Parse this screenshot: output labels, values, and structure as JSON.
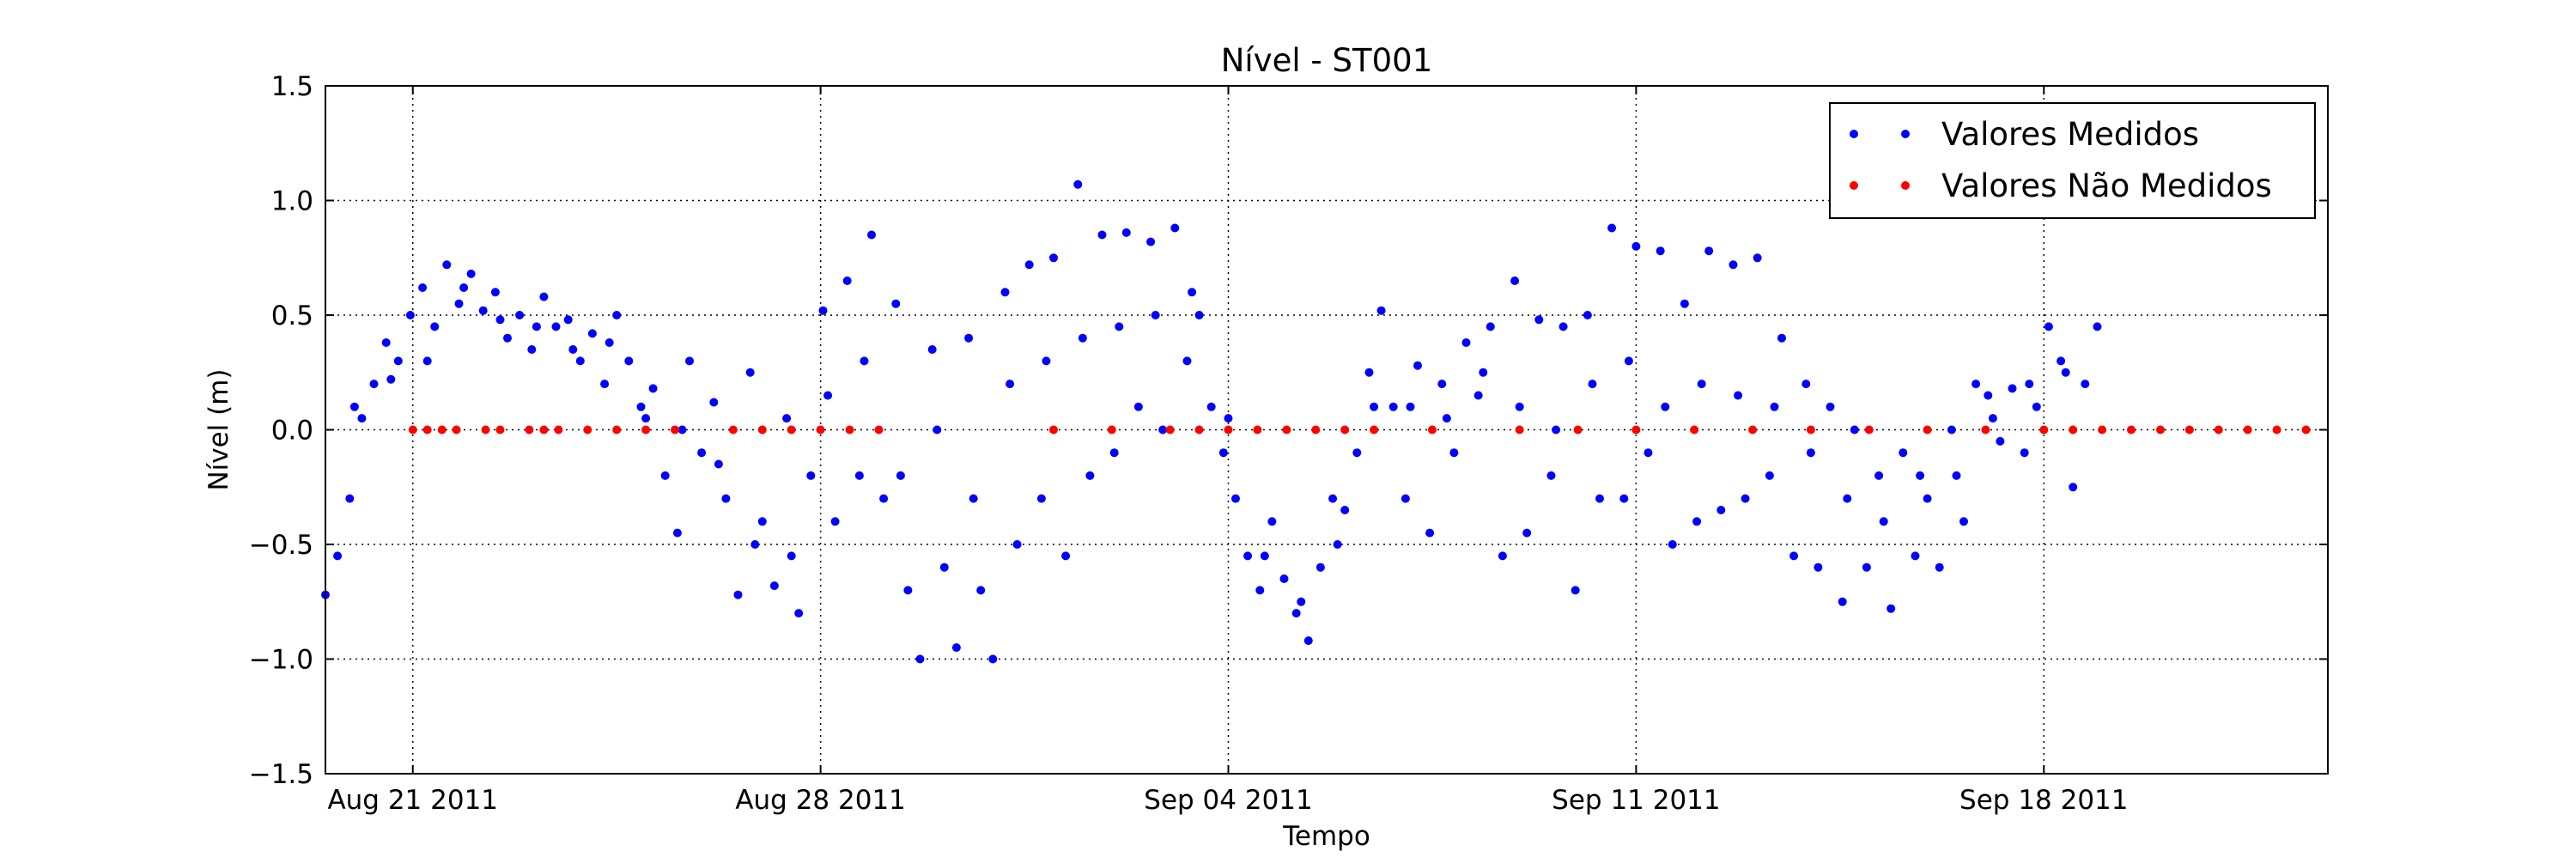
{
  "chart_data": {
    "type": "scatter",
    "title": "Nível - ST001",
    "xlabel": "Tempo",
    "ylabel": "Nível (m)",
    "x_is_date": true,
    "xlim": [
      "2011-08-19T12:00",
      "2011-09-22T21:00"
    ],
    "ylim": [
      -1.5,
      1.5
    ],
    "x_ticks": [
      {
        "value": "2011-08-21",
        "label": "Aug 21 2011"
      },
      {
        "value": "2011-08-28",
        "label": "Aug 28 2011"
      },
      {
        "value": "2011-09-04",
        "label": "Sep 04 2011"
      },
      {
        "value": "2011-09-11",
        "label": "Sep 11 2011"
      },
      {
        "value": "2011-09-18",
        "label": "Sep 18 2011"
      }
    ],
    "y_ticks": [
      {
        "value": 1.5,
        "label": "1.5"
      },
      {
        "value": 1.0,
        "label": "1.0"
      },
      {
        "value": 0.5,
        "label": "0.5"
      },
      {
        "value": 0.0,
        "label": "0.0"
      },
      {
        "value": -0.5,
        "label": "−0.5"
      },
      {
        "value": -1.0,
        "label": "−1.0"
      },
      {
        "value": -1.5,
        "label": "−1.5"
      }
    ],
    "grid": true,
    "legend_position": "top-right",
    "series": [
      {
        "name": "Valores Medidos",
        "color": "#0000ff",
        "points": [
          [
            "2011-08-19T12:00",
            -0.72
          ],
          [
            "2011-08-19T17:00",
            -0.55
          ],
          [
            "2011-08-19T22:00",
            -0.3
          ],
          [
            "2011-08-20T03:00",
            0.05
          ],
          [
            "2011-08-20T08:00",
            0.2
          ],
          [
            "2011-08-20T13:00",
            0.38
          ],
          [
            "2011-08-20T18:00",
            0.3
          ],
          [
            "2011-08-20T23:00",
            0.5
          ],
          [
            "2011-08-21T04:00",
            0.62
          ],
          [
            "2011-08-21T09:00",
            0.45
          ],
          [
            "2011-08-21T14:00",
            0.72
          ],
          [
            "2011-08-21T19:00",
            0.55
          ],
          [
            "2011-08-22T00:00",
            0.68
          ],
          [
            "2011-08-22T05:00",
            0.52
          ],
          [
            "2011-08-22T10:00",
            0.6
          ],
          [
            "2011-08-22T15:00",
            0.4
          ],
          [
            "2011-08-22T20:00",
            0.5
          ],
          [
            "2011-08-23T01:00",
            0.35
          ],
          [
            "2011-08-23T06:00",
            0.58
          ],
          [
            "2011-08-23T11:00",
            0.45
          ],
          [
            "2011-08-23T16:00",
            0.48
          ],
          [
            "2011-08-23T21:00",
            0.3
          ],
          [
            "2011-08-24T02:00",
            0.42
          ],
          [
            "2011-08-24T07:00",
            0.2
          ],
          [
            "2011-08-24T12:00",
            0.5
          ],
          [
            "2011-08-24T17:00",
            0.3
          ],
          [
            "2011-08-24T22:00",
            0.1
          ],
          [
            "2011-08-25T03:00",
            0.18
          ],
          [
            "2011-08-25T08:00",
            -0.2
          ],
          [
            "2011-08-25T13:00",
            -0.45
          ],
          [
            "2011-08-25T18:00",
            0.3
          ],
          [
            "2011-08-25T23:00",
            -0.1
          ],
          [
            "2011-08-26T04:00",
            0.12
          ],
          [
            "2011-08-26T09:00",
            -0.3
          ],
          [
            "2011-08-26T14:00",
            -0.72
          ],
          [
            "2011-08-26T19:00",
            0.25
          ],
          [
            "2011-08-27T00:00",
            -0.4
          ],
          [
            "2011-08-27T05:00",
            -0.68
          ],
          [
            "2011-08-27T10:00",
            0.05
          ],
          [
            "2011-08-27T15:00",
            -0.8
          ],
          [
            "2011-08-27T20:00",
            -0.2
          ],
          [
            "2011-08-28T01:00",
            0.52
          ],
          [
            "2011-08-28T06:00",
            -0.4
          ],
          [
            "2011-08-28T11:00",
            0.65
          ],
          [
            "2011-08-28T16:00",
            -0.2
          ],
          [
            "2011-08-28T21:00",
            0.85
          ],
          [
            "2011-08-29T02:00",
            -0.3
          ],
          [
            "2011-08-29T07:00",
            0.55
          ],
          [
            "2011-08-29T12:00",
            -0.7
          ],
          [
            "2011-08-29T17:00",
            -1.0
          ],
          [
            "2011-08-29T22:00",
            0.35
          ],
          [
            "2011-08-30T03:00",
            -0.6
          ],
          [
            "2011-08-30T08:00",
            -0.95
          ],
          [
            "2011-08-30T13:00",
            0.4
          ],
          [
            "2011-08-30T18:00",
            -0.7
          ],
          [
            "2011-08-30T23:00",
            -1.0
          ],
          [
            "2011-08-31T04:00",
            0.6
          ],
          [
            "2011-08-31T09:00",
            -0.5
          ],
          [
            "2011-08-31T14:00",
            0.72
          ],
          [
            "2011-08-31T19:00",
            -0.3
          ],
          [
            "2011-09-01T00:00",
            0.75
          ],
          [
            "2011-09-01T05:00",
            -0.55
          ],
          [
            "2011-09-01T10:00",
            1.07
          ],
          [
            "2011-09-01T15:00",
            -0.2
          ],
          [
            "2011-09-01T20:00",
            0.85
          ],
          [
            "2011-09-02T01:00",
            -0.1
          ],
          [
            "2011-09-02T06:00",
            0.86
          ],
          [
            "2011-09-02T11:00",
            0.1
          ],
          [
            "2011-09-02T16:00",
            0.82
          ],
          [
            "2011-09-02T21:00",
            0.0
          ],
          [
            "2011-09-03T02:00",
            0.88
          ],
          [
            "2011-09-03T07:00",
            0.3
          ],
          [
            "2011-09-03T12:00",
            0.5
          ],
          [
            "2011-09-03T17:00",
            0.1
          ],
          [
            "2011-09-03T22:00",
            -0.1
          ],
          [
            "2011-09-04T03:00",
            -0.3
          ],
          [
            "2011-09-04T08:00",
            -0.55
          ],
          [
            "2011-09-04T13:00",
            -0.7
          ],
          [
            "2011-09-04T18:00",
            -0.4
          ],
          [
            "2011-09-04T23:00",
            -0.65
          ],
          [
            "2011-09-05T04:00",
            -0.8
          ],
          [
            "2011-09-05T09:00",
            -0.92
          ],
          [
            "2011-09-05T14:00",
            -0.6
          ],
          [
            "2011-09-05T19:00",
            -0.3
          ],
          [
            "2011-09-06T00:00",
            -0.35
          ],
          [
            "2011-09-06T05:00",
            -0.1
          ],
          [
            "2011-09-06T10:00",
            0.25
          ],
          [
            "2011-09-06T15:00",
            0.52
          ],
          [
            "2011-09-06T20:00",
            0.1
          ],
          [
            "2011-09-07T01:00",
            -0.3
          ],
          [
            "2011-09-07T06:00",
            0.28
          ],
          [
            "2011-09-07T11:00",
            -0.45
          ],
          [
            "2011-09-07T16:00",
            0.2
          ],
          [
            "2011-09-07T21:00",
            -0.1
          ],
          [
            "2011-09-08T02:00",
            0.38
          ],
          [
            "2011-09-08T07:00",
            0.15
          ],
          [
            "2011-09-08T12:00",
            0.45
          ],
          [
            "2011-09-08T17:00",
            -0.55
          ],
          [
            "2011-09-08T22:00",
            0.65
          ],
          [
            "2011-09-09T03:00",
            -0.45
          ],
          [
            "2011-09-09T08:00",
            0.48
          ],
          [
            "2011-09-09T13:00",
            -0.2
          ],
          [
            "2011-09-09T18:00",
            0.45
          ],
          [
            "2011-09-09T23:00",
            -0.7
          ],
          [
            "2011-09-10T04:00",
            0.5
          ],
          [
            "2011-09-10T09:00",
            -0.3
          ],
          [
            "2011-09-10T14:00",
            0.88
          ],
          [
            "2011-09-10T19:00",
            -0.3
          ],
          [
            "2011-09-11T00:00",
            0.8
          ],
          [
            "2011-09-11T05:00",
            -0.1
          ],
          [
            "2011-09-11T10:00",
            0.78
          ],
          [
            "2011-09-11T15:00",
            -0.5
          ],
          [
            "2011-09-11T20:00",
            0.55
          ],
          [
            "2011-09-12T01:00",
            -0.4
          ],
          [
            "2011-09-12T06:00",
            0.78
          ],
          [
            "2011-09-12T11:00",
            -0.35
          ],
          [
            "2011-09-12T16:00",
            0.72
          ],
          [
            "2011-09-12T21:00",
            -0.3
          ],
          [
            "2011-09-13T02:00",
            0.75
          ],
          [
            "2011-09-13T07:00",
            -0.2
          ],
          [
            "2011-09-13T12:00",
            0.4
          ],
          [
            "2011-09-13T17:00",
            -0.55
          ],
          [
            "2011-09-13T22:00",
            0.2
          ],
          [
            "2011-09-14T03:00",
            -0.6
          ],
          [
            "2011-09-14T08:00",
            0.1
          ],
          [
            "2011-09-14T13:00",
            -0.75
          ],
          [
            "2011-09-14T18:00",
            0.0
          ],
          [
            "2011-09-14T23:00",
            -0.6
          ],
          [
            "2011-09-15T04:00",
            -0.2
          ],
          [
            "2011-09-15T09:00",
            -0.78
          ],
          [
            "2011-09-15T14:00",
            -0.1
          ],
          [
            "2011-09-15T19:00",
            -0.55
          ],
          [
            "2011-09-16T00:00",
            -0.3
          ],
          [
            "2011-09-16T05:00",
            -0.6
          ],
          [
            "2011-09-16T10:00",
            0.0
          ],
          [
            "2011-09-16T15:00",
            -0.4
          ],
          [
            "2011-09-16T20:00",
            0.2
          ],
          [
            "2011-09-17T01:00",
            0.15
          ],
          [
            "2011-09-17T06:00",
            -0.05
          ],
          [
            "2011-09-17T11:00",
            0.18
          ],
          [
            "2011-09-17T16:00",
            -0.1
          ],
          [
            "2011-09-17T21:00",
            0.1
          ],
          [
            "2011-09-18T02:00",
            0.45
          ],
          [
            "2011-09-18T07:00",
            0.3
          ],
          [
            "2011-09-18T12:00",
            -0.25
          ],
          [
            "2011-09-18T17:00",
            0.2
          ],
          [
            "2011-09-18T22:00",
            0.45
          ],
          [
            "2011-08-20T00:00",
            0.1
          ],
          [
            "2011-08-20T15:00",
            0.22
          ],
          [
            "2011-08-21T06:00",
            0.3
          ],
          [
            "2011-08-21T21:00",
            0.62
          ],
          [
            "2011-08-22T12:00",
            0.48
          ],
          [
            "2011-08-23T03:00",
            0.45
          ],
          [
            "2011-08-23T18:00",
            0.35
          ],
          [
            "2011-08-24T09:00",
            0.38
          ],
          [
            "2011-08-25T00:00",
            0.05
          ],
          [
            "2011-08-25T15:00",
            0.0
          ],
          [
            "2011-08-26T06:00",
            -0.15
          ],
          [
            "2011-08-26T21:00",
            -0.5
          ],
          [
            "2011-08-27T12:00",
            -0.55
          ],
          [
            "2011-08-28T03:00",
            0.15
          ],
          [
            "2011-08-28T18:00",
            0.3
          ],
          [
            "2011-08-29T09:00",
            -0.2
          ],
          [
            "2011-08-30T00:00",
            0.0
          ],
          [
            "2011-08-30T15:00",
            -0.3
          ],
          [
            "2011-08-31T06:00",
            0.2
          ],
          [
            "2011-08-31T21:00",
            0.3
          ],
          [
            "2011-09-01T12:00",
            0.4
          ],
          [
            "2011-09-02T03:00",
            0.45
          ],
          [
            "2011-09-02T18:00",
            0.5
          ],
          [
            "2011-09-03T09:00",
            0.6
          ],
          [
            "2011-09-04T00:00",
            0.05
          ],
          [
            "2011-09-04T15:00",
            -0.55
          ],
          [
            "2011-09-05T06:00",
            -0.75
          ],
          [
            "2011-09-05T21:00",
            -0.5
          ],
          [
            "2011-09-06T12:00",
            0.1
          ],
          [
            "2011-09-07T03:00",
            0.1
          ],
          [
            "2011-09-07T18:00",
            0.05
          ],
          [
            "2011-09-08T09:00",
            0.25
          ],
          [
            "2011-09-09T00:00",
            0.1
          ],
          [
            "2011-09-09T15:00",
            0.0
          ],
          [
            "2011-09-10T06:00",
            0.2
          ],
          [
            "2011-09-10T21:00",
            0.3
          ],
          [
            "2011-09-11T12:00",
            0.1
          ],
          [
            "2011-09-12T03:00",
            0.2
          ],
          [
            "2011-09-12T18:00",
            0.15
          ],
          [
            "2011-09-13T09:00",
            0.1
          ],
          [
            "2011-09-14T00:00",
            -0.1
          ],
          [
            "2011-09-14T15:00",
            -0.3
          ],
          [
            "2011-09-15T06:00",
            -0.4
          ],
          [
            "2011-09-15T21:00",
            -0.2
          ],
          [
            "2011-09-16T12:00",
            -0.2
          ],
          [
            "2011-09-17T03:00",
            0.05
          ],
          [
            "2011-09-17T18:00",
            0.2
          ],
          [
            "2011-09-18T09:00",
            0.25
          ]
        ]
      },
      {
        "name": "Valores Não Medidos",
        "color": "#ff0000",
        "points": [
          [
            "2011-08-21T00:00",
            0.0
          ],
          [
            "2011-08-21T06:00",
            0.0
          ],
          [
            "2011-08-21T12:00",
            0.0
          ],
          [
            "2011-08-21T18:00",
            0.0
          ],
          [
            "2011-08-22T06:00",
            0.0
          ],
          [
            "2011-08-22T12:00",
            0.0
          ],
          [
            "2011-08-23T00:00",
            0.0
          ],
          [
            "2011-08-23T06:00",
            0.0
          ],
          [
            "2011-08-23T12:00",
            0.0
          ],
          [
            "2011-08-24T00:00",
            0.0
          ],
          [
            "2011-08-24T12:00",
            0.0
          ],
          [
            "2011-08-25T00:00",
            0.0
          ],
          [
            "2011-08-25T12:00",
            0.0
          ],
          [
            "2011-08-26T12:00",
            0.0
          ],
          [
            "2011-08-27T00:00",
            0.0
          ],
          [
            "2011-08-27T12:00",
            0.0
          ],
          [
            "2011-08-28T00:00",
            0.0
          ],
          [
            "2011-08-28T12:00",
            0.0
          ],
          [
            "2011-08-29T00:00",
            0.0
          ],
          [
            "2011-09-01T00:00",
            0.0
          ],
          [
            "2011-09-02T00:00",
            0.0
          ],
          [
            "2011-09-03T00:00",
            0.0
          ],
          [
            "2011-09-03T12:00",
            0.0
          ],
          [
            "2011-09-04T00:00",
            0.0
          ],
          [
            "2011-09-04T12:00",
            0.0
          ],
          [
            "2011-09-05T00:00",
            0.0
          ],
          [
            "2011-09-05T12:00",
            0.0
          ],
          [
            "2011-09-06T00:00",
            0.0
          ],
          [
            "2011-09-06T12:00",
            0.0
          ],
          [
            "2011-09-07T12:00",
            0.0
          ],
          [
            "2011-09-09T00:00",
            0.0
          ],
          [
            "2011-09-10T00:00",
            0.0
          ],
          [
            "2011-09-11T00:00",
            0.0
          ],
          [
            "2011-09-12T00:00",
            0.0
          ],
          [
            "2011-09-13T00:00",
            0.0
          ],
          [
            "2011-09-14T00:00",
            0.0
          ],
          [
            "2011-09-15T00:00",
            0.0
          ],
          [
            "2011-09-16T00:00",
            0.0
          ],
          [
            "2011-09-17T00:00",
            0.0
          ],
          [
            "2011-09-18T00:00",
            0.0
          ],
          [
            "2011-09-18T12:00",
            0.0
          ],
          [
            "2011-09-19T00:00",
            0.0
          ],
          [
            "2011-09-19T12:00",
            0.0
          ],
          [
            "2011-09-20T00:00",
            0.0
          ],
          [
            "2011-09-20T12:00",
            0.0
          ],
          [
            "2011-09-21T00:00",
            0.0
          ],
          [
            "2011-09-21T12:00",
            0.0
          ],
          [
            "2011-09-22T00:00",
            0.0
          ],
          [
            "2011-09-22T12:00",
            0.0
          ]
        ]
      }
    ]
  }
}
